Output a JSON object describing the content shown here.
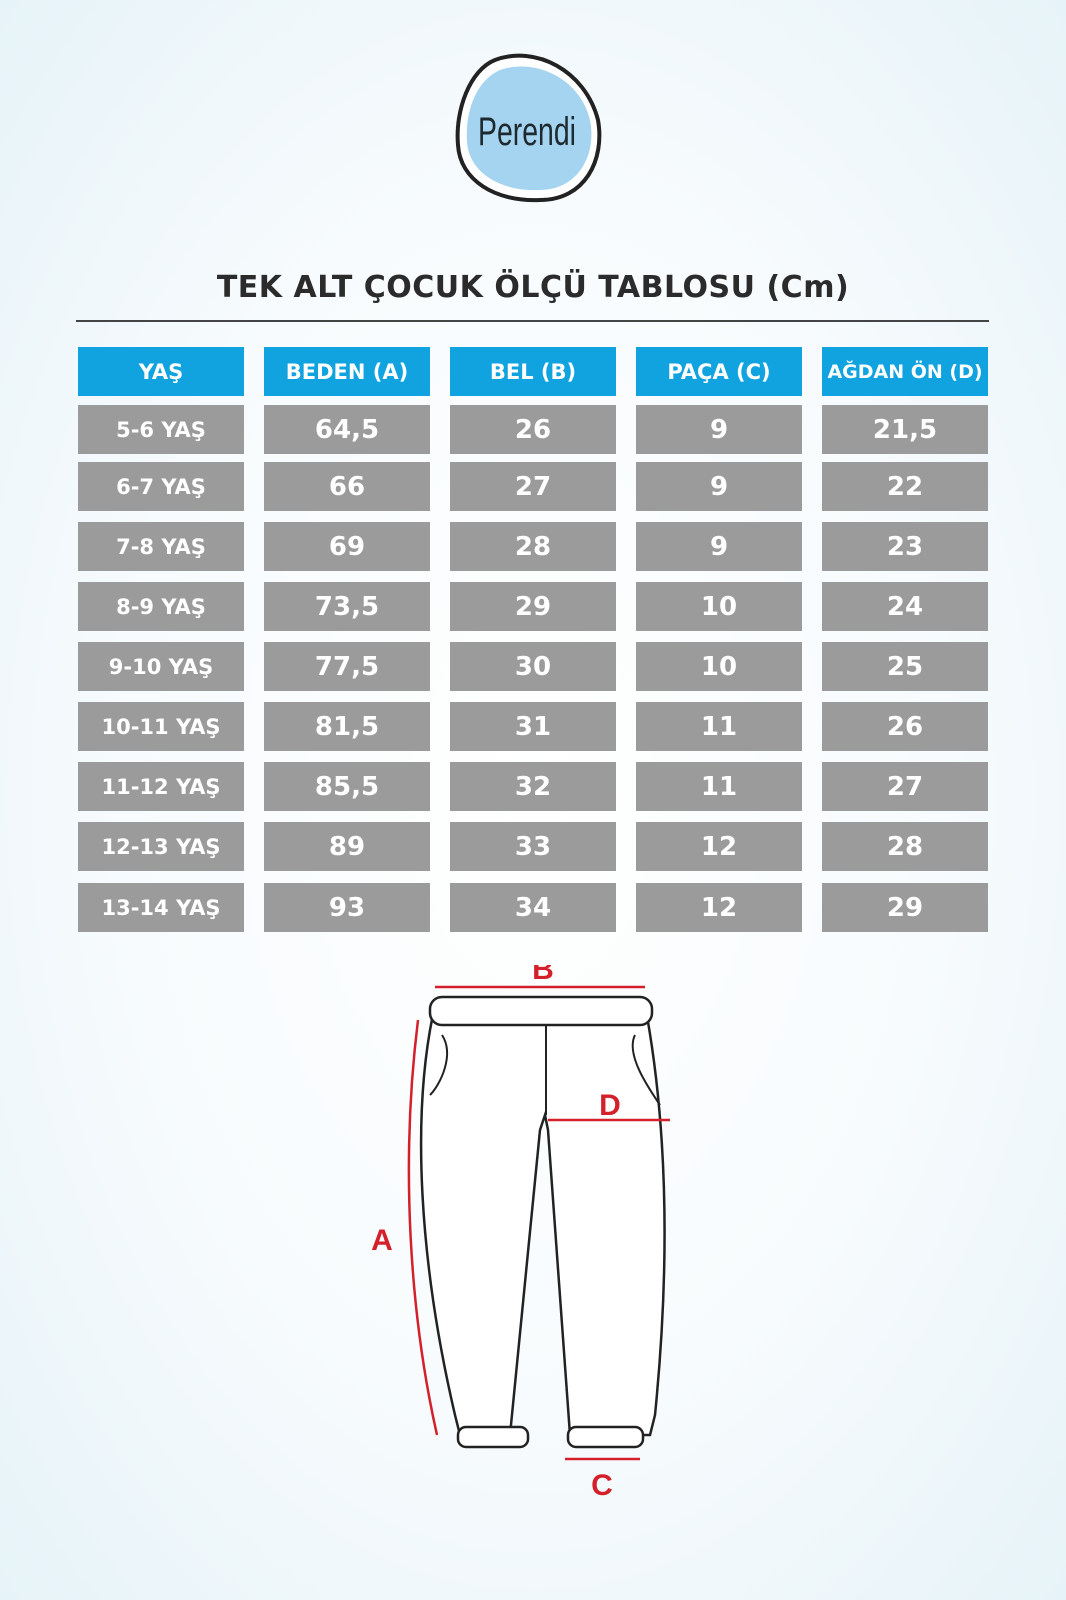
{
  "brand": {
    "logo_text": "Perendi"
  },
  "title": "TEK ALT ÇOCUK ÖLÇÜ TABLOSU (Cm)",
  "colors": {
    "header": "#10a3df",
    "cell": "#9b9b9b",
    "marker": "#d3202a"
  },
  "table": {
    "headers": [
      "YAŞ",
      "BEDEN (A)",
      "BEL (B)",
      "PAÇA (C)",
      "AĞDAN ÖN (D)"
    ],
    "rows": [
      [
        "5-6 YAŞ",
        "64,5",
        "26",
        "9",
        "21,5"
      ],
      [
        "6-7 YAŞ",
        "66",
        "27",
        "9",
        "22"
      ],
      [
        "7-8 YAŞ",
        "69",
        "28",
        "9",
        "23"
      ],
      [
        "8-9 YAŞ",
        "73,5",
        "29",
        "10",
        "24"
      ],
      [
        "9-10 YAŞ",
        "77,5",
        "30",
        "10",
        "25"
      ],
      [
        "10-11 YAŞ",
        "81,5",
        "31",
        "11",
        "26"
      ],
      [
        "11-12 YAŞ",
        "85,5",
        "32",
        "11",
        "27"
      ],
      [
        "12-13 YAŞ",
        "89",
        "33",
        "12",
        "28"
      ],
      [
        "13-14 YAŞ",
        "93",
        "34",
        "12",
        "29"
      ]
    ]
  },
  "diagram": {
    "labels": {
      "a": "A",
      "b": "B",
      "c": "C",
      "d": "D"
    }
  }
}
